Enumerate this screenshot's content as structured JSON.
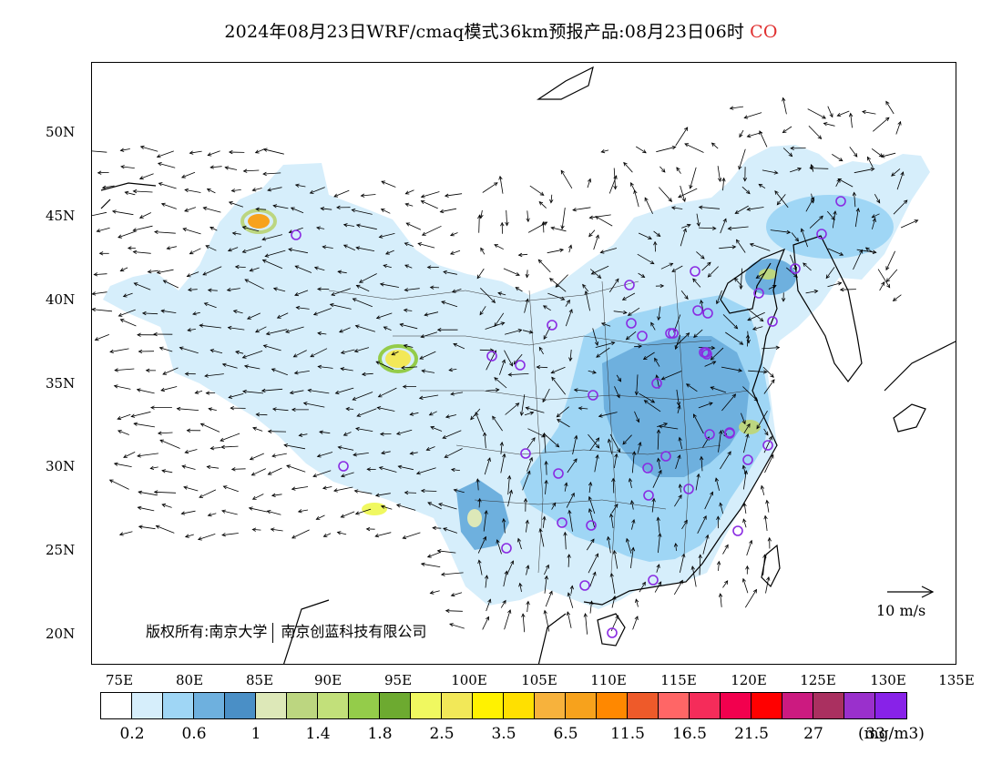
{
  "title": {
    "text": "2024年08月23日WRF/cmaq模式36km预报产品:08月23日06时",
    "species": "CO",
    "species_color": "#e03030"
  },
  "map": {
    "lat_labels": [
      "50N",
      "45N",
      "40N",
      "35N",
      "30N",
      "25N",
      "20N"
    ],
    "lon_labels": [
      "75E",
      "80E",
      "85E",
      "90E",
      "95E",
      "100E",
      "105E",
      "110E",
      "115E",
      "120E",
      "125E",
      "130E",
      "135E"
    ],
    "copyright_left": "版权所有:南京大学",
    "copyright_right": "南京创蓝科技有限公司",
    "reference_vector_label": "10 m/s",
    "station_marker_color": "#8a2be2",
    "coastline_color": "#000000"
  },
  "colorbar": {
    "colors": [
      "#ffffff",
      "#d6eefb",
      "#9fd6f5",
      "#6eb0de",
      "#4a8fc6",
      "#dde8b8",
      "#bcd680",
      "#c2e07a",
      "#94cc4a",
      "#6daa30",
      "#f0f860",
      "#f2e858",
      "#fff200",
      "#ffe000",
      "#f7b23c",
      "#f7a21c",
      "#ff8800",
      "#ee5a2a",
      "#ff6666",
      "#f52c5a",
      "#f2004e",
      "#ff0000",
      "#cc1a80",
      "#aa3060",
      "#9a30cc",
      "#8822e8"
    ],
    "labels": [
      "0.2",
      "0.6",
      "1",
      "1.4",
      "1.8",
      "2.5",
      "3.5",
      "6.5",
      "11.5",
      "16.5",
      "21.5",
      "27",
      "33"
    ],
    "unit": "(mg/m3)"
  }
}
